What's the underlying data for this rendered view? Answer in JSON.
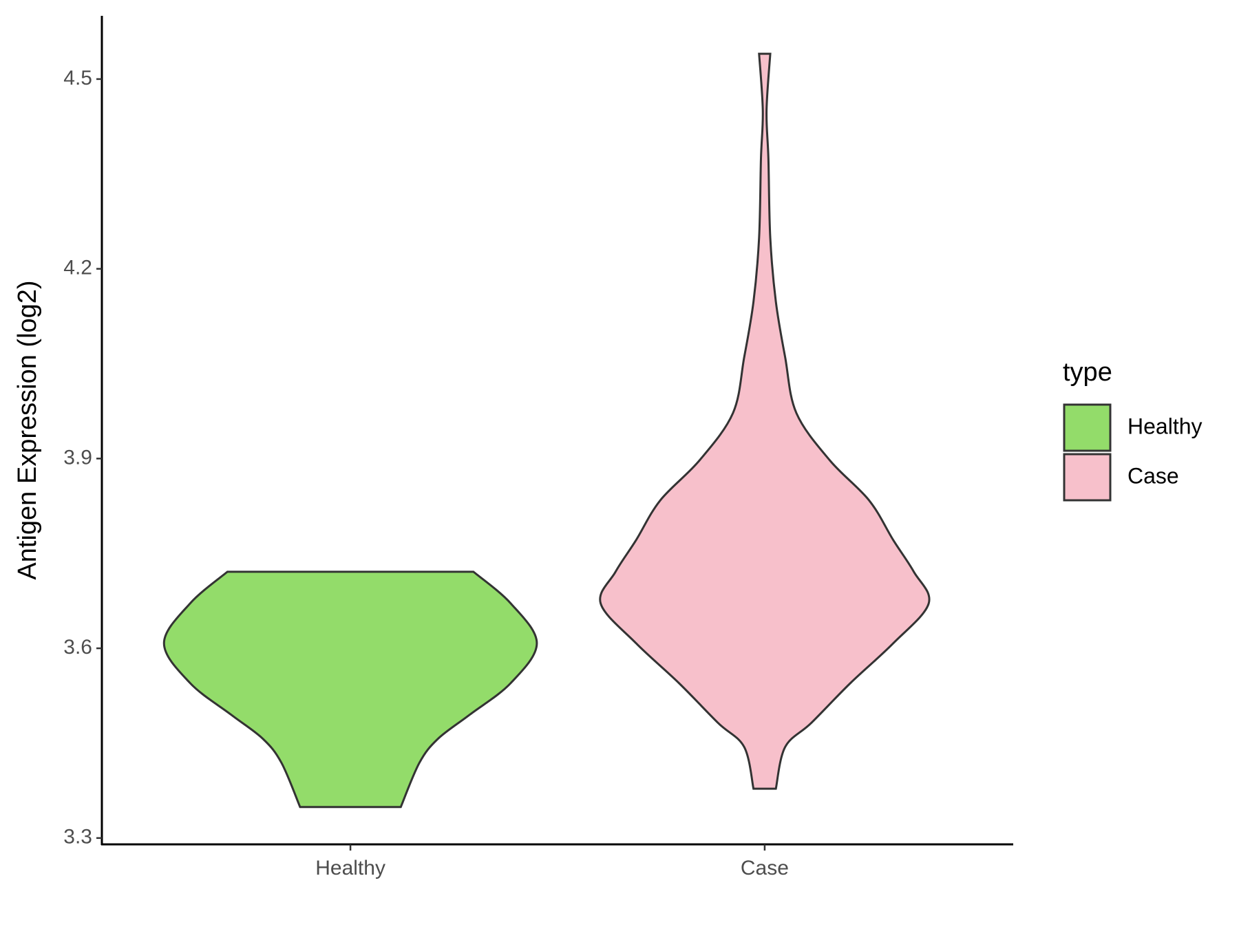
{
  "chart_data": {
    "type": "violin",
    "y_label": "Antigen Expression (log2)",
    "legend_title": "type",
    "categories": [
      "Healthy",
      "Case"
    ],
    "series": [
      {
        "name": "Healthy",
        "color": "#93dc6a",
        "y": [
          3.349,
          3.419,
          3.457,
          3.495,
          3.545,
          3.608,
          3.671,
          3.721
        ],
        "width": [
          0.27,
          0.37,
          0.47,
          0.64,
          0.86,
          1.0,
          0.86,
          0.66
        ]
      },
      {
        "name": "Case",
        "color": "#f7c0cb",
        "y": [
          3.378,
          3.444,
          3.482,
          3.545,
          3.608,
          3.671,
          3.721,
          3.771,
          3.834,
          3.897,
          3.972,
          4.06,
          4.148,
          4.249,
          4.374,
          4.45,
          4.54
        ],
        "width": [
          0.06,
          0.11,
          0.25,
          0.46,
          0.69,
          0.88,
          0.8,
          0.69,
          0.56,
          0.35,
          0.17,
          0.11,
          0.06,
          0.03,
          0.02,
          0.01,
          0.03
        ]
      }
    ],
    "ylim": [
      3.29,
      4.6
    ],
    "yticks": [
      3.3,
      3.6,
      3.9,
      4.2,
      4.5
    ]
  }
}
